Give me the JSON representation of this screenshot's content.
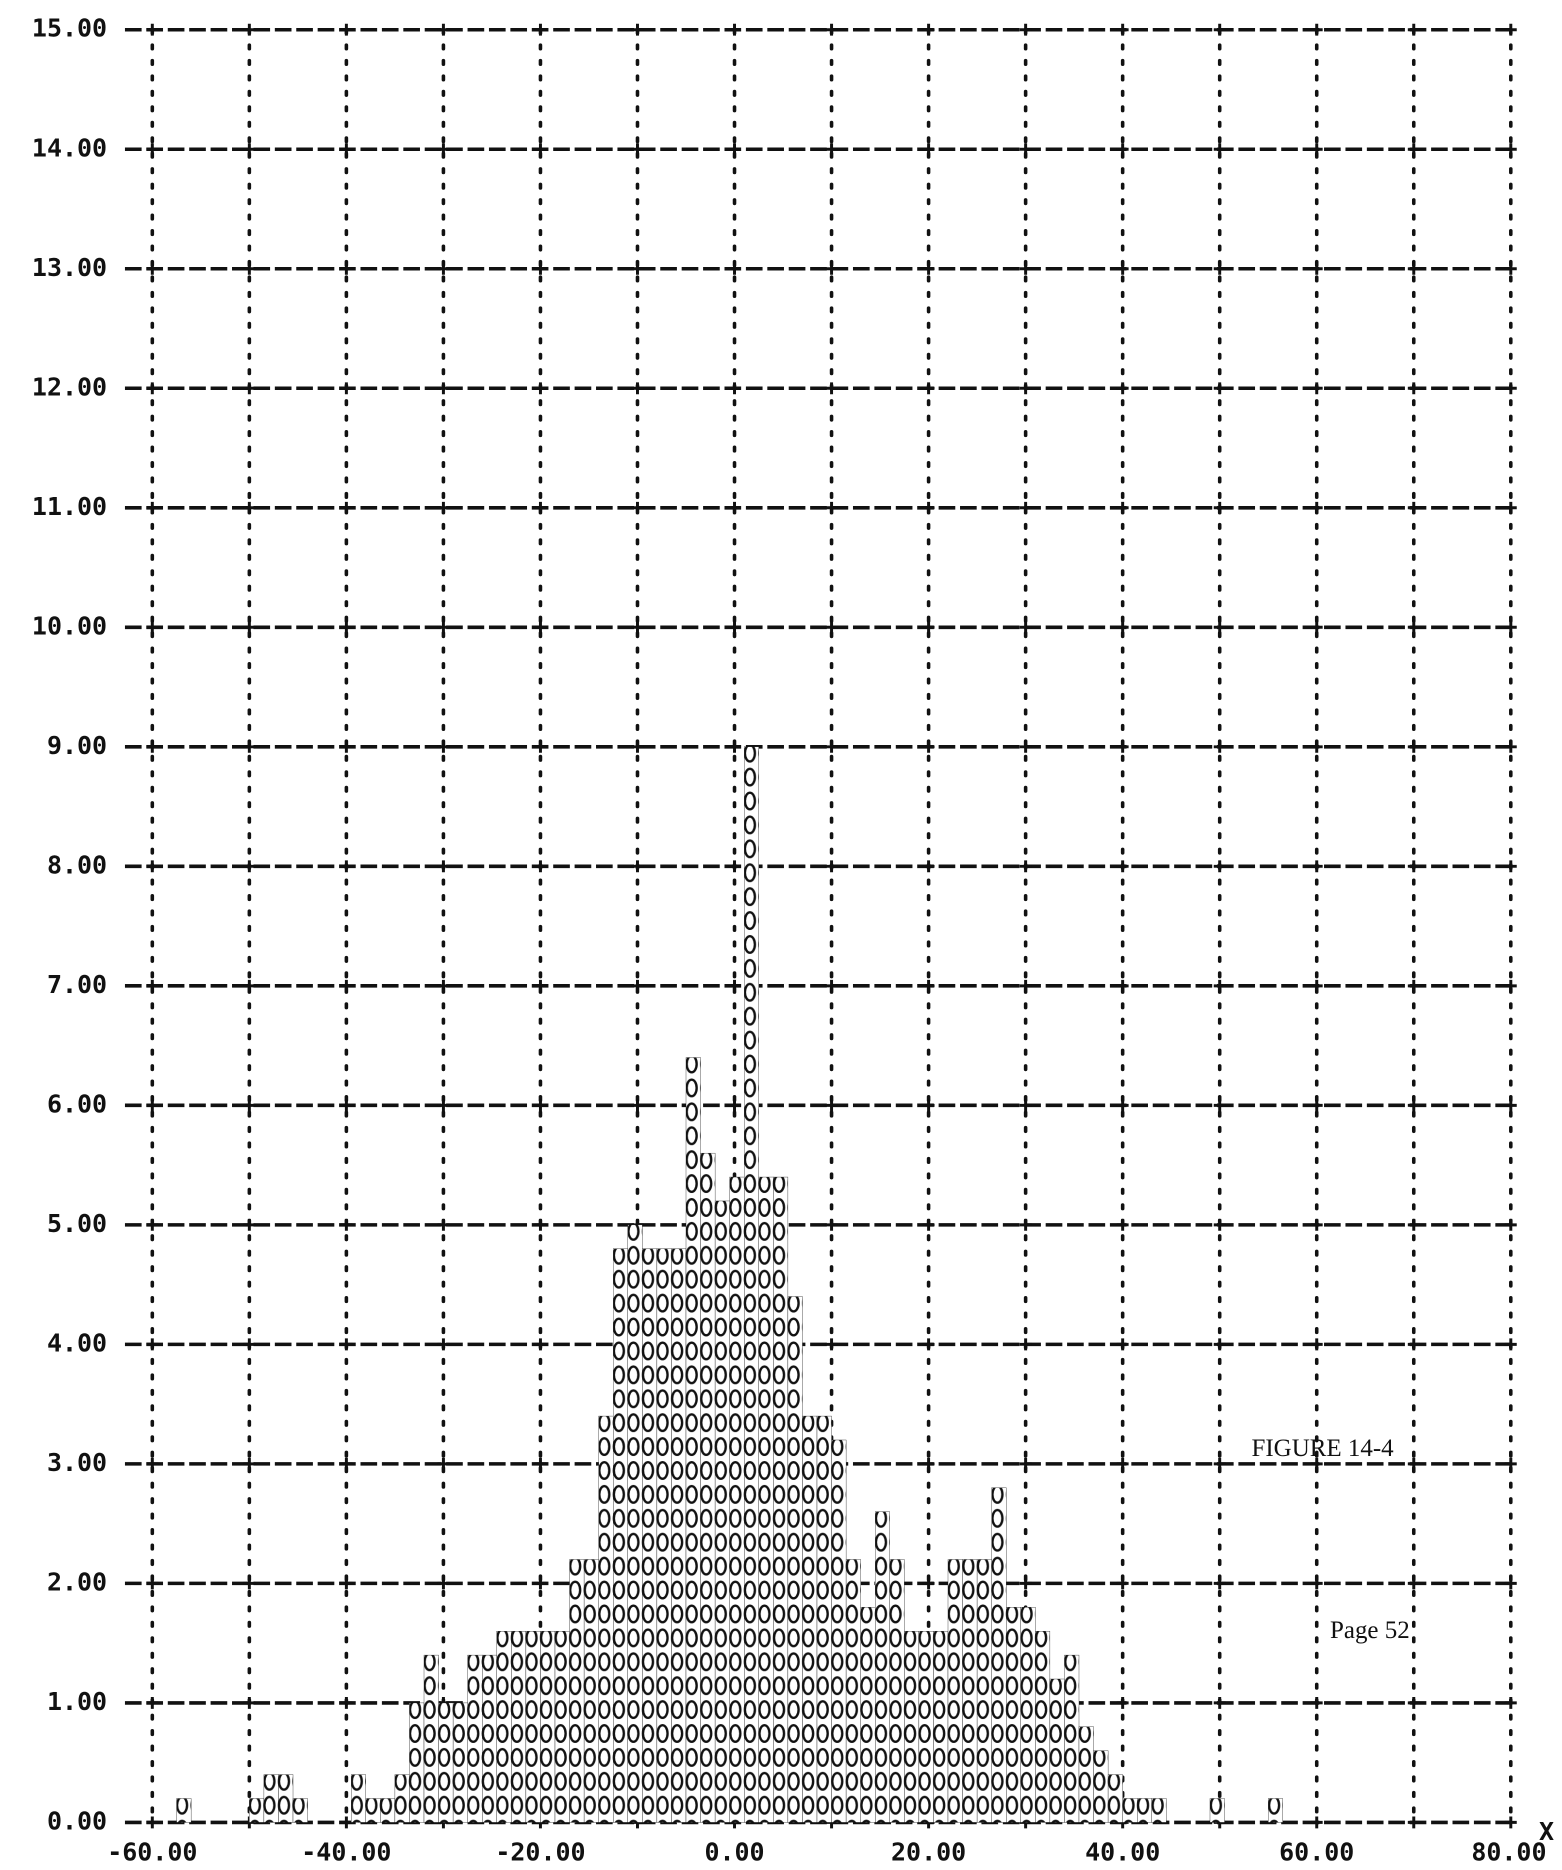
{
  "chart_data": {
    "type": "histogram",
    "annotations": [
      "FIGURE 14-4",
      "Page 52"
    ],
    "x_label": "X",
    "bins": [
      -57.5,
      -56,
      -54.5,
      -53,
      -51.5,
      -50,
      -48.5,
      -47,
      -45.5,
      -44,
      -42.5,
      -41,
      -39.5,
      -38,
      -36.5,
      -35,
      -33.5,
      -32,
      -30.5,
      -29,
      -27.5,
      -26,
      -24.5,
      -23,
      -21.5,
      -20,
      -18.5,
      -17,
      -15.5,
      -14,
      -12.5,
      -11,
      -9.5,
      -8,
      -6.5,
      -5,
      -3.5,
      -2,
      -0.5,
      1,
      2.5,
      4,
      5.5,
      7,
      8.5,
      10,
      11.5,
      13,
      14.5,
      16,
      17.5,
      19,
      20.5,
      22,
      23.5,
      25,
      26.5,
      28,
      29.5,
      31,
      32.5,
      34,
      35.5,
      37,
      38.5,
      40,
      41.5,
      43,
      44.5,
      46,
      47.5,
      49,
      50.5,
      52,
      53.5,
      55,
      56.5
    ],
    "values": [
      0.2,
      0,
      0,
      0,
      0,
      0.2,
      0.4,
      0.4,
      0.2,
      0,
      0,
      0,
      0.4,
      0.2,
      0.2,
      0.4,
      1.0,
      1.4,
      1.0,
      1.0,
      1.4,
      1.4,
      1.6,
      1.6,
      1.6,
      1.6,
      1.6,
      2.2,
      2.2,
      3.4,
      4.8,
      5.0,
      4.8,
      4.8,
      4.8,
      6.4,
      5.6,
      5.2,
      5.4,
      9.0,
      5.4,
      5.4,
      4.4,
      3.4,
      3.4,
      3.2,
      2.2,
      1.8,
      2.6,
      2.2,
      1.6,
      1.6,
      1.6,
      2.2,
      2.2,
      2.2,
      2.8,
      1.8,
      1.8,
      1.6,
      1.2,
      1.4,
      0.8,
      0.6,
      0.4,
      0.2,
      0.2,
      0.2,
      0,
      0,
      0,
      0.2,
      0,
      0,
      0,
      0.2
    ],
    "color": "#111111",
    "xlim": [
      -60,
      80
    ],
    "xticks": [
      {
        "value": -60,
        "label": "-60.00"
      },
      {
        "value": -40,
        "label": "-40.00"
      },
      {
        "value": -20,
        "label": "-20.00"
      },
      {
        "value": 0,
        "label": "0.00"
      },
      {
        "value": 20,
        "label": "20.00"
      },
      {
        "value": 40,
        "label": "40.00"
      },
      {
        "value": 60,
        "label": "60.00"
      },
      {
        "value": 80,
        "label": "80.00"
      }
    ],
    "x_minor_ticks": [
      -50,
      -30,
      -10,
      10,
      30,
      50,
      70
    ],
    "ylim": [
      0,
      15
    ],
    "yticks": [
      {
        "value": 0,
        "label": "0.00"
      },
      {
        "value": 1,
        "label": "1.00"
      },
      {
        "value": 2,
        "label": "2.00"
      },
      {
        "value": 3,
        "label": "3.00"
      },
      {
        "value": 4,
        "label": "4.00"
      },
      {
        "value": 5,
        "label": "5.00"
      },
      {
        "value": 6,
        "label": "6.00"
      },
      {
        "value": 7,
        "label": "7.00"
      },
      {
        "value": 8,
        "label": "8.00"
      },
      {
        "value": 9,
        "label": "9.00"
      },
      {
        "value": 10,
        "label": "10.00"
      },
      {
        "value": 11,
        "label": "11.00"
      },
      {
        "value": 12,
        "label": "12.00"
      },
      {
        "value": 13,
        "label": "13.00"
      },
      {
        "value": 14,
        "label": "14.00"
      },
      {
        "value": 15,
        "label": "15.00"
      }
    ],
    "grid": true
  }
}
